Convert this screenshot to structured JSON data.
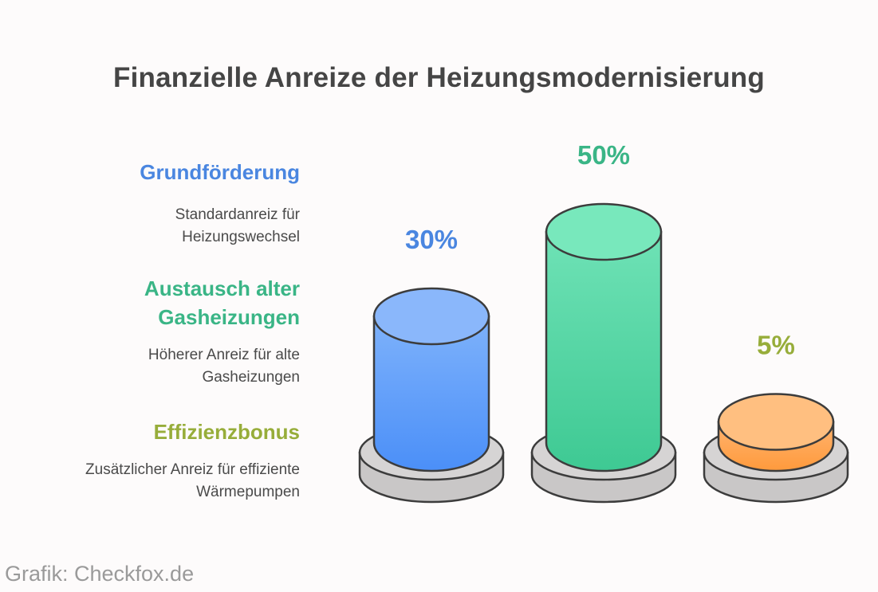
{
  "title": "Finanzielle Anreize der Heizungsmodernisierung",
  "credit": "Grafik: Checkfox.de",
  "legend": [
    {
      "heading": "Grundförderung",
      "desc_lines": [
        "Standardanreiz für",
        "Heizungswechsel"
      ],
      "color": "#4a86e0"
    },
    {
      "heading_lines": [
        "Austausch alter",
        "Gasheizungen"
      ],
      "desc_lines": [
        "Höherer Anreiz für alte",
        "Gasheizungen"
      ],
      "color": "#3ab586"
    },
    {
      "heading": "Effizienzbonus",
      "desc_lines": [
        "Zusätzlicher Anreiz für effiziente",
        "Wärmepumpen"
      ],
      "color": "#97ad3a"
    }
  ],
  "chart_data": {
    "type": "bar",
    "style": "3d-cylinder",
    "categories": [
      "Grundförderung",
      "Austausch alter Gasheizungen",
      "Effizienzbonus"
    ],
    "values": [
      30,
      50,
      5
    ],
    "value_labels": [
      "30%",
      "50%",
      "5%"
    ],
    "label_colors": [
      "#4a86e0",
      "#3ab586",
      "#97ad3a"
    ],
    "bar_colors": [
      {
        "top": "#8ab7fb",
        "body_light": "#7eb2fb",
        "body_dark": "#4b8ff8"
      },
      {
        "top": "#78e8bc",
        "body_light": "#6fe2b6",
        "body_dark": "#3ec993"
      },
      {
        "top": "#ffbf80",
        "body_light": "#ffb470",
        "body_dark": "#ff9a3c"
      }
    ]
  }
}
